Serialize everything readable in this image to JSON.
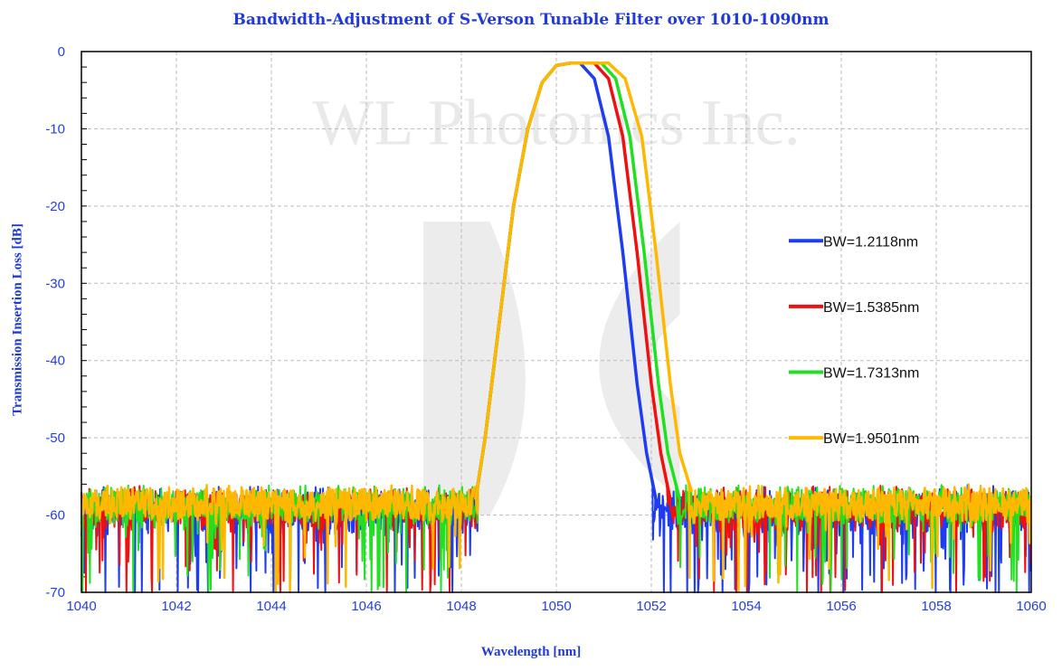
{
  "chart_data": {
    "type": "line",
    "title": "Bandwidth-Adjustment of S-Verson Tunable Filter over 1010-1090nm",
    "xlabel": "Wavelength [nm]",
    "ylabel": "Transmission Insertion Loss [dB]",
    "xlim": [
      1040,
      1060
    ],
    "ylim": [
      -70,
      0
    ],
    "xticks": [
      1040,
      1042,
      1044,
      1046,
      1048,
      1050,
      1052,
      1054,
      1056,
      1058,
      1060
    ],
    "yticks": [
      0,
      -10,
      -20,
      -30,
      -40,
      -50,
      -60,
      -70
    ],
    "grid": true,
    "legend_position": "right",
    "watermark": "WL Photonics Inc.",
    "noise_floor_db": -58,
    "noise_min_db": -70,
    "series": [
      {
        "name": "BW=1.2118nm",
        "color": "#1e3cf0",
        "noise": 1.0,
        "points": [
          [
            1048.3,
            -58
          ],
          [
            1048.5,
            -50
          ],
          [
            1048.8,
            -35
          ],
          [
            1049.1,
            -20
          ],
          [
            1049.4,
            -10
          ],
          [
            1049.7,
            -4
          ],
          [
            1050,
            -1.8
          ],
          [
            1050.3,
            -1.5
          ],
          [
            1050.5,
            -1.5
          ],
          [
            1050.8,
            -3.5
          ],
          [
            1051.1,
            -11
          ],
          [
            1051.4,
            -26
          ],
          [
            1051.7,
            -43
          ],
          [
            1051.9,
            -52
          ],
          [
            1052.1,
            -58
          ]
        ]
      },
      {
        "name": "BW=1.5385nm",
        "color": "#f01010",
        "noise": 0.8,
        "points": [
          [
            1048.3,
            -58
          ],
          [
            1048.5,
            -50
          ],
          [
            1048.8,
            -35
          ],
          [
            1049.1,
            -20
          ],
          [
            1049.4,
            -10
          ],
          [
            1049.7,
            -4
          ],
          [
            1050,
            -1.8
          ],
          [
            1050.3,
            -1.5
          ],
          [
            1050.8,
            -1.5
          ],
          [
            1051.1,
            -3.5
          ],
          [
            1051.4,
            -11
          ],
          [
            1051.7,
            -26
          ],
          [
            1052,
            -43
          ],
          [
            1052.2,
            -52
          ],
          [
            1052.4,
            -58
          ]
        ]
      },
      {
        "name": "BW=1.7313nm",
        "color": "#20e020",
        "noise": 0.6,
        "points": [
          [
            1048.3,
            -58
          ],
          [
            1048.5,
            -50
          ],
          [
            1048.8,
            -35
          ],
          [
            1049.1,
            -20
          ],
          [
            1049.4,
            -10
          ],
          [
            1049.7,
            -4
          ],
          [
            1050,
            -1.8
          ],
          [
            1050.3,
            -1.5
          ],
          [
            1050.95,
            -1.5
          ],
          [
            1051.25,
            -3.5
          ],
          [
            1051.55,
            -11
          ],
          [
            1051.85,
            -26
          ],
          [
            1052.15,
            -43
          ],
          [
            1052.35,
            -52
          ],
          [
            1052.6,
            -58
          ]
        ]
      },
      {
        "name": "BW=1.9501nm",
        "color": "#ffb800",
        "noise": 0.35,
        "points": [
          [
            1048.3,
            -58
          ],
          [
            1048.5,
            -50
          ],
          [
            1048.8,
            -35
          ],
          [
            1049.1,
            -20
          ],
          [
            1049.4,
            -10
          ],
          [
            1049.7,
            -4
          ],
          [
            1050,
            -1.8
          ],
          [
            1050.3,
            -1.5
          ],
          [
            1051.1,
            -1.5
          ],
          [
            1051.45,
            -3.5
          ],
          [
            1051.8,
            -11
          ],
          [
            1052.1,
            -26
          ],
          [
            1052.4,
            -43
          ],
          [
            1052.6,
            -52
          ],
          [
            1052.85,
            -57
          ]
        ]
      }
    ]
  }
}
